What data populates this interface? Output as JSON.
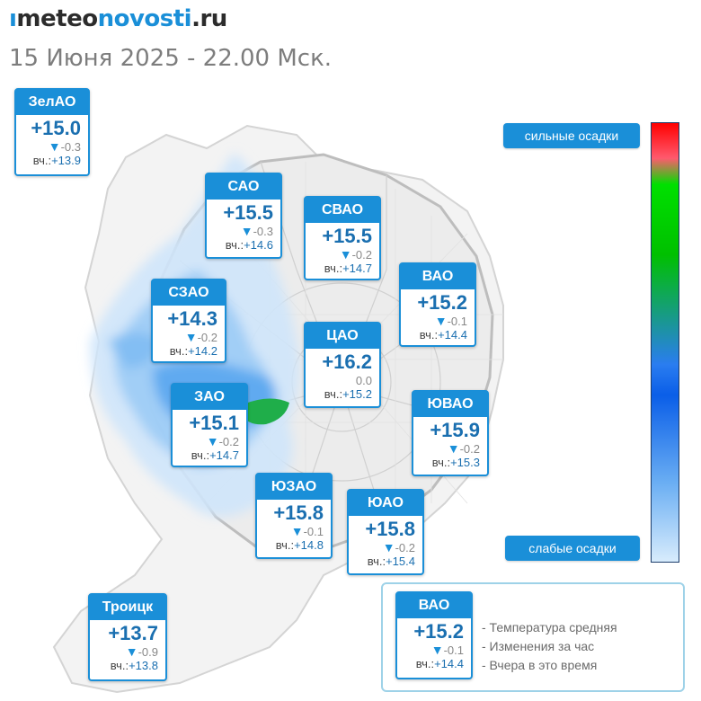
{
  "header": {
    "logo_mark": "ı",
    "logo_part1": "meteo",
    "logo_part2": "novosti",
    "logo_part3": ".ru",
    "datetime": "15 Июня 2025 - 22.00 Мск."
  },
  "colors": {
    "accent": "#1a8fd8",
    "temperature_text": "#1a6fb0",
    "precip_light": "#cfe6fb",
    "precip_mid": "#7fbcf3",
    "precip_strong": "#2f8fe8",
    "precip_peak": "#1fae4a"
  },
  "districts": [
    {
      "name": "ЗелАО",
      "temp": "+15.0",
      "change_arrow": "▼",
      "change": "-0.3",
      "yesterday_label": "вч.:",
      "yesterday": "+13.9"
    },
    {
      "name": "САО",
      "temp": "+15.5",
      "change_arrow": "▼",
      "change": "-0.3",
      "yesterday_label": "вч.:",
      "yesterday": "+14.6"
    },
    {
      "name": "СВАО",
      "temp": "+15.5",
      "change_arrow": "▼",
      "change": "-0.2",
      "yesterday_label": "вч.:",
      "yesterday": "+14.7"
    },
    {
      "name": "ВАО",
      "temp": "+15.2",
      "change_arrow": "▼",
      "change": "-0.1",
      "yesterday_label": "вч.:",
      "yesterday": "+14.4"
    },
    {
      "name": "СЗАО",
      "temp": "+14.3",
      "change_arrow": "▼",
      "change": "-0.2",
      "yesterday_label": "вч.:",
      "yesterday": "+14.2"
    },
    {
      "name": "ЦАО",
      "temp": "+16.2",
      "change_arrow": "",
      "change": "0.0",
      "yesterday_label": "вч.:",
      "yesterday": "+15.2"
    },
    {
      "name": "ЗАО",
      "temp": "+15.1",
      "change_arrow": "▼",
      "change": "-0.2",
      "yesterday_label": "вч.:",
      "yesterday": "+14.7"
    },
    {
      "name": "ЮВАО",
      "temp": "+15.9",
      "change_arrow": "▼",
      "change": "-0.2",
      "yesterday_label": "вч.:",
      "yesterday": "+15.3"
    },
    {
      "name": "ЮЗАО",
      "temp": "+15.8",
      "change_arrow": "▼",
      "change": "-0.1",
      "yesterday_label": "вч.:",
      "yesterday": "+14.8"
    },
    {
      "name": "ЮАО",
      "temp": "+15.8",
      "change_arrow": "▼",
      "change": "-0.2",
      "yesterday_label": "вч.:",
      "yesterday": "+15.4"
    },
    {
      "name": "Троицк",
      "temp": "+13.7",
      "change_arrow": "▼",
      "change": "-0.9",
      "yesterday_label": "вч.:",
      "yesterday": "+13.8"
    }
  ],
  "scale": {
    "top_label": "сильные осадки",
    "bottom_label": "слабые осадки"
  },
  "legend": {
    "sample": {
      "name": "ВАО",
      "temp": "+15.2",
      "change_arrow": "▼",
      "change": "-0.1",
      "yesterday_label": "вч.:",
      "yesterday": "+14.4"
    },
    "lines": [
      "- Температура средняя",
      "- Изменения за час",
      "- Вчера в это время"
    ]
  }
}
